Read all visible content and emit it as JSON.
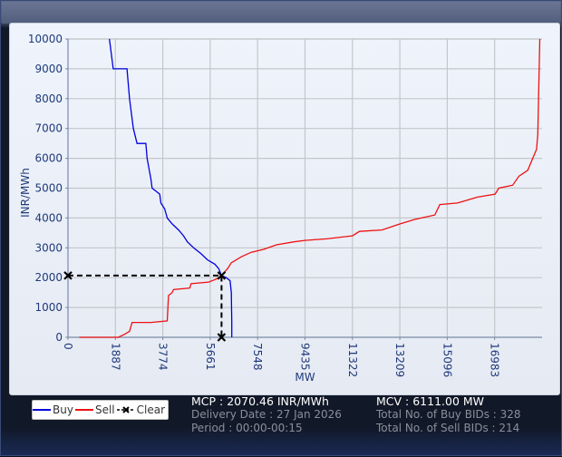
{
  "window": {
    "frame_color": "#5d6a88",
    "background": "#111827"
  },
  "chart_data": {
    "type": "line",
    "title": "",
    "xlabel": "MW",
    "ylabel": "INR/MWh",
    "xlim": [
      0,
      18870
    ],
    "ylim": [
      0,
      10000
    ],
    "x_ticks": [
      0,
      1887,
      3774,
      5661,
      7548,
      9435,
      11322,
      13209,
      15096,
      16983
    ],
    "x_tick_labels": [
      "0",
      "1887",
      "3774",
      "5661",
      "7548",
      "9435",
      "11322",
      "13209",
      "15096",
      "16983"
    ],
    "y_ticks": [
      0,
      1000,
      2000,
      3000,
      4000,
      5000,
      6000,
      7000,
      8000,
      9000,
      10000
    ],
    "y_tick_labels": [
      "0",
      "1000",
      "2000",
      "3000",
      "4000",
      "5000",
      "6000",
      "7000",
      "8000",
      "9000",
      "10000"
    ],
    "grid": true,
    "legend_position": "bottom-left",
    "series": [
      {
        "name": "Buy",
        "color": "#0000dd",
        "points": [
          [
            1650,
            10000
          ],
          [
            1800,
            9000
          ],
          [
            2350,
            9000
          ],
          [
            2450,
            8000
          ],
          [
            2600,
            7000
          ],
          [
            2750,
            6500
          ],
          [
            3100,
            6500
          ],
          [
            3150,
            6000
          ],
          [
            3300,
            5300
          ],
          [
            3350,
            5000
          ],
          [
            3500,
            4900
          ],
          [
            3650,
            4800
          ],
          [
            3700,
            4500
          ],
          [
            3850,
            4300
          ],
          [
            3950,
            4000
          ],
          [
            4150,
            3800
          ],
          [
            4400,
            3600
          ],
          [
            4600,
            3400
          ],
          [
            4750,
            3200
          ],
          [
            5000,
            3000
          ],
          [
            5300,
            2800
          ],
          [
            5550,
            2600
          ],
          [
            5850,
            2450
          ],
          [
            6000,
            2300
          ],
          [
            6111,
            2070
          ],
          [
            6300,
            2000
          ],
          [
            6450,
            1900
          ],
          [
            6500,
            1500
          ],
          [
            6520,
            500
          ],
          [
            6520,
            0
          ]
        ]
      },
      {
        "name": "Sell",
        "color": "#ee1111",
        "points": [
          [
            450,
            0
          ],
          [
            1500,
            0
          ],
          [
            2000,
            0
          ],
          [
            2250,
            100
          ],
          [
            2450,
            200
          ],
          [
            2550,
            500
          ],
          [
            3300,
            500
          ],
          [
            3950,
            550
          ],
          [
            4000,
            1400
          ],
          [
            4150,
            1500
          ],
          [
            4200,
            1600
          ],
          [
            4850,
            1650
          ],
          [
            4900,
            1800
          ],
          [
            5600,
            1850
          ],
          [
            5900,
            1950
          ],
          [
            6111,
            2070
          ],
          [
            6350,
            2300
          ],
          [
            6500,
            2500
          ],
          [
            6900,
            2700
          ],
          [
            7300,
            2850
          ],
          [
            7800,
            2950
          ],
          [
            8300,
            3100
          ],
          [
            9000,
            3200
          ],
          [
            9435,
            3250
          ],
          [
            10300,
            3300
          ],
          [
            11322,
            3400
          ],
          [
            11600,
            3550
          ],
          [
            12500,
            3600
          ],
          [
            13209,
            3800
          ],
          [
            13800,
            3950
          ],
          [
            14600,
            4100
          ],
          [
            14800,
            4450
          ],
          [
            15500,
            4500
          ],
          [
            16300,
            4700
          ],
          [
            17000,
            4800
          ],
          [
            17150,
            5000
          ],
          [
            17700,
            5100
          ],
          [
            17950,
            5400
          ],
          [
            18300,
            5600
          ],
          [
            18500,
            6000
          ],
          [
            18650,
            6300
          ],
          [
            18700,
            6800
          ],
          [
            18780,
            10000
          ]
        ]
      },
      {
        "name": "Clear",
        "color": "#000000",
        "style": "dashed",
        "points": [
          [
            0,
            2070.46
          ],
          [
            6111,
            2070.46
          ],
          [
            6111,
            0
          ]
        ]
      }
    ],
    "annotations": {
      "mcp": 2070.46,
      "mcv": 6111.0
    }
  },
  "legend": {
    "items": [
      {
        "label": "Buy",
        "color": "#0000dd"
      },
      {
        "label": "Sell",
        "color": "#ee1111"
      },
      {
        "label": "Clear",
        "color": "#000000"
      }
    ]
  },
  "info": {
    "mcp": "MCP : 2070.46 INR/MWh",
    "delivery_date": "Delivery Date : 27 Jan 2026",
    "period": "Period :  00:00-00:15",
    "mcv": "MCV : 6111.00 MW",
    "total_buy_bids": "Total No. of Buy BIDs : 328",
    "total_sell_bids": "Total No. of Sell BIDs : 214"
  }
}
